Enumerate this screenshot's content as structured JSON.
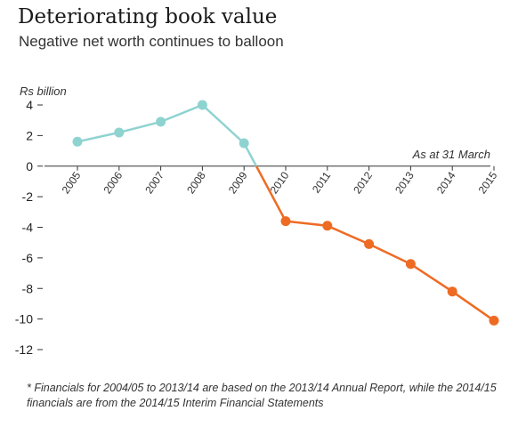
{
  "header": {
    "title": "Deteriorating book value",
    "subtitle": "Negative net worth continues to balloon"
  },
  "footnote": "* Financials for 2004/05 to 2013/14 are based on the 2013/14 Annual Report, while the 2014/15 financials are from the 2014/15 Interim Financial Statements",
  "chart_data": {
    "type": "line",
    "title": "Deteriorating book value",
    "subtitle": "Negative net worth continues to balloon",
    "ylabel": "Rs billion",
    "xlabel": "",
    "annotation": "As at 31 March",
    "ylim": [
      -12,
      4
    ],
    "yticks": [
      4,
      2,
      0,
      -2,
      -4,
      -6,
      -8,
      -10,
      -12
    ],
    "grid": false,
    "legend": "none",
    "categories": [
      "2005",
      "2006",
      "2007",
      "2008",
      "2009",
      "2010",
      "2011",
      "2012",
      "2013",
      "2014",
      "2015"
    ],
    "values": [
      1.6,
      2.2,
      2.9,
      4.0,
      1.5,
      -3.6,
      -3.9,
      -5.1,
      -6.4,
      -8.2,
      -10.1
    ],
    "colors": {
      "positive": "#8fd3d1",
      "negative": "#ee6b24",
      "axis": "#333333"
    }
  }
}
